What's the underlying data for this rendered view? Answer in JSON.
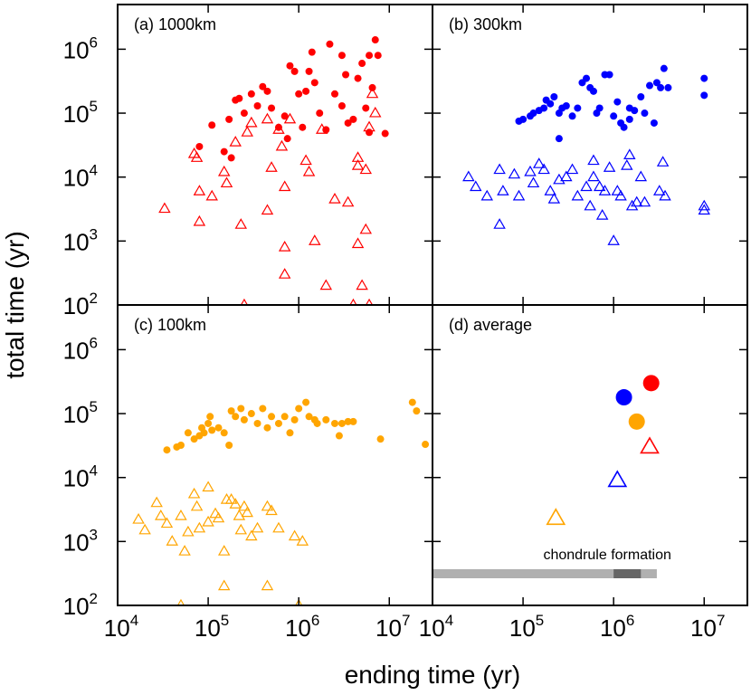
{
  "axis_labels": {
    "x": "ending time (yr)",
    "y": "total time  (yr)"
  },
  "chart_data": [
    {
      "type": "scatter",
      "title": "(a) 1000km",
      "xlim": [
        10000,
        30000000
      ],
      "ylim": [
        100,
        5000000
      ],
      "log_scale": true,
      "xticks": [
        {
          "value": 10000,
          "label": "10",
          "exponent": "4"
        },
        {
          "value": 100000,
          "label": "10",
          "exponent": "5"
        },
        {
          "value": 1000000,
          "label": "10",
          "exponent": "6"
        },
        {
          "value": 10000000,
          "label": "10",
          "exponent": "7"
        }
      ],
      "yticks": [
        {
          "value": 100,
          "label": "10",
          "exponent": "2"
        },
        {
          "value": 1000,
          "label": "10",
          "exponent": "3"
        },
        {
          "value": 10000,
          "label": "10",
          "exponent": "4"
        },
        {
          "value": 100000,
          "label": "10",
          "exponent": "5"
        },
        {
          "value": 1000000,
          "label": "10",
          "exponent": "6"
        }
      ],
      "series": [
        {
          "marker": "circle",
          "color": "#ff0000",
          "x": [
            80000,
            110000,
            150000,
            170000,
            180000,
            200000,
            220000,
            250000,
            300000,
            350000,
            400000,
            450000,
            500000,
            600000,
            700000,
            750000,
            800000,
            900000,
            1000000,
            1100000,
            1300000,
            1400000,
            1500000,
            1700000,
            2000000,
            2200000,
            2500000,
            3000000,
            3300000,
            3500000,
            4000000,
            4500000,
            5000000,
            5500000,
            6000000,
            6500000,
            7000000,
            7500000,
            9000000,
            3000000,
            1200000,
            6000000
          ],
          "values": [
            30000,
            65000,
            25000,
            80000,
            20000,
            160000,
            170000,
            100000,
            200000,
            130000,
            260000,
            220000,
            120000,
            60000,
            90000,
            40000,
            550000,
            450000,
            200000,
            60000,
            450000,
            900000,
            300000,
            100000,
            55000,
            1200000,
            200000,
            800000,
            400000,
            70000,
            80000,
            350000,
            600000,
            120000,
            800000,
            250000,
            1400000,
            800000,
            48000,
            130000,
            220000,
            50000
          ]
        },
        {
          "marker": "triangle",
          "color": "#ff0000",
          "x": [
            33000,
            70000,
            75000,
            80000,
            80000,
            110000,
            150000,
            160000,
            200000,
            230000,
            270000,
            300000,
            450000,
            450000,
            500000,
            600000,
            650000,
            700000,
            700000,
            700000,
            800000,
            1200000,
            1300000,
            1500000,
            1800000,
            2000000,
            2500000,
            3500000,
            4000000,
            4500000,
            4500000,
            4500000,
            5000000,
            5500000,
            5500000,
            6000000,
            6500000,
            7000000,
            6000000,
            250000
          ],
          "values": [
            3200,
            23000,
            20000,
            6000,
            2000,
            5000,
            12000,
            8000,
            35000,
            1800,
            50000,
            70000,
            3000,
            80000,
            14000,
            55000,
            30000,
            7000,
            800,
            300,
            80000,
            18000,
            12000,
            1000,
            55000,
            200,
            4500,
            4000,
            100,
            20000,
            15000,
            900,
            200,
            1500,
            13000,
            60000,
            200000,
            100000,
            100,
            100
          ]
        }
      ]
    },
    {
      "type": "scatter",
      "title": "(b) 300km",
      "xlim": [
        10000,
        30000000
      ],
      "ylim": [
        100,
        5000000
      ],
      "log_scale": true,
      "xticks": [
        {
          "value": 10000,
          "label": "10",
          "exponent": "4"
        },
        {
          "value": 100000,
          "label": "10",
          "exponent": "5"
        },
        {
          "value": 1000000,
          "label": "10",
          "exponent": "6"
        },
        {
          "value": 10000000,
          "label": "10",
          "exponent": "7"
        }
      ],
      "yticks": [
        {
          "value": 100,
          "label": "10",
          "exponent": "2"
        },
        {
          "value": 1000,
          "label": "10",
          "exponent": "3"
        },
        {
          "value": 10000,
          "label": "10",
          "exponent": "4"
        },
        {
          "value": 100000,
          "label": "10",
          "exponent": "5"
        },
        {
          "value": 1000000,
          "label": "10",
          "exponent": "6"
        }
      ],
      "series": [
        {
          "marker": "circle",
          "color": "#0000ff",
          "x": [
            90000,
            100000,
            120000,
            130000,
            150000,
            170000,
            180000,
            200000,
            220000,
            250000,
            270000,
            300000,
            350000,
            400000,
            450000,
            500000,
            550000,
            600000,
            650000,
            700000,
            800000,
            900000,
            1000000,
            1100000,
            1200000,
            1300000,
            1500000,
            1700000,
            2000000,
            2200000,
            2500000,
            2800000,
            3000000,
            3300000,
            3600000,
            4000000,
            10000000,
            10000000,
            250000,
            1500000
          ],
          "values": [
            75000,
            80000,
            90000,
            100000,
            110000,
            120000,
            160000,
            140000,
            180000,
            100000,
            120000,
            130000,
            90000,
            120000,
            300000,
            350000,
            250000,
            220000,
            100000,
            120000,
            400000,
            400000,
            90000,
            150000,
            70000,
            60000,
            80000,
            110000,
            180000,
            100000,
            270000,
            70000,
            300000,
            250000,
            500000,
            250000,
            350000,
            190000,
            40000,
            120000
          ]
        },
        {
          "marker": "triangle",
          "color": "#0000ff",
          "x": [
            25000,
            30000,
            40000,
            55000,
            55000,
            60000,
            80000,
            90000,
            120000,
            130000,
            150000,
            170000,
            200000,
            220000,
            250000,
            300000,
            350000,
            400000,
            500000,
            550000,
            600000,
            700000,
            750000,
            800000,
            900000,
            1000000,
            1100000,
            1200000,
            1400000,
            1500000,
            1600000,
            1800000,
            2000000,
            2200000,
            3200000,
            3500000,
            3700000,
            10000000,
            10000000,
            600000
          ],
          "values": [
            10000,
            7000,
            5000,
            13000,
            1800,
            6000,
            11000,
            5000,
            12000,
            8000,
            16000,
            13000,
            6000,
            4500,
            9000,
            10000,
            13000,
            5000,
            7000,
            3500,
            18000,
            7000,
            2500,
            6000,
            14000,
            1000,
            6000,
            5000,
            15000,
            22000,
            3500,
            4000,
            10000,
            4000,
            6000,
            17000,
            5000,
            3500,
            3000,
            10000
          ]
        }
      ]
    },
    {
      "type": "scatter",
      "title": "(c) 100km",
      "xlim": [
        10000,
        30000000
      ],
      "ylim": [
        100,
        5000000
      ],
      "log_scale": true,
      "xticks": [
        {
          "value": 10000,
          "label": "10",
          "exponent": "4"
        },
        {
          "value": 100000,
          "label": "10",
          "exponent": "5"
        },
        {
          "value": 1000000,
          "label": "10",
          "exponent": "6"
        },
        {
          "value": 10000000,
          "label": "10",
          "exponent": "7"
        }
      ],
      "yticks": [
        {
          "value": 100,
          "label": "10",
          "exponent": "2"
        },
        {
          "value": 1000,
          "label": "10",
          "exponent": "3"
        },
        {
          "value": 10000,
          "label": "10",
          "exponent": "4"
        },
        {
          "value": 100000,
          "label": "10",
          "exponent": "5"
        },
        {
          "value": 1000000,
          "label": "10",
          "exponent": "6"
        }
      ],
      "series": [
        {
          "marker": "circle",
          "color": "#ffa500",
          "x": [
            35000,
            45000,
            50000,
            60000,
            70000,
            80000,
            85000,
            90000,
            100000,
            105000,
            110000,
            130000,
            150000,
            170000,
            180000,
            200000,
            230000,
            250000,
            300000,
            350000,
            400000,
            450000,
            500000,
            600000,
            700000,
            800000,
            900000,
            1000000,
            1200000,
            1300000,
            1500000,
            2000000,
            2500000,
            3000000,
            3500000,
            4000000,
            8000000,
            18000000,
            20000000,
            25000000,
            2800000,
            1600000
          ],
          "values": [
            27000,
            30000,
            32000,
            50000,
            40000,
            45000,
            60000,
            50000,
            70000,
            90000,
            55000,
            60000,
            50000,
            32000,
            110000,
            90000,
            120000,
            80000,
            100000,
            70000,
            120000,
            60000,
            90000,
            70000,
            90000,
            50000,
            80000,
            120000,
            150000,
            90000,
            80000,
            80000,
            70000,
            70000,
            75000,
            75000,
            40000,
            150000,
            110000,
            33000,
            45000,
            70000
          ]
        },
        {
          "marker": "triangle",
          "color": "#ffa500",
          "x": [
            17000,
            20000,
            27000,
            30000,
            35000,
            40000,
            50000,
            55000,
            60000,
            70000,
            75000,
            80000,
            100000,
            100000,
            120000,
            130000,
            150000,
            160000,
            180000,
            200000,
            220000,
            230000,
            250000,
            270000,
            300000,
            350000,
            450000,
            500000,
            600000,
            900000,
            1100000,
            450000,
            150000,
            50000,
            1000000
          ],
          "values": [
            2200,
            1500,
            4000,
            2500,
            1900,
            1000,
            2500,
            700,
            1400,
            5500,
            3500,
            1600,
            2000,
            7000,
            2700,
            2300,
            700,
            4500,
            4500,
            3800,
            2500,
            1500,
            3500,
            2800,
            1200,
            1600,
            3500,
            3000,
            1600,
            1200,
            1000,
            200,
            200,
            100,
            100
          ]
        }
      ]
    },
    {
      "type": "scatter",
      "title": "(d) average",
      "xlim": [
        10000,
        30000000
      ],
      "ylim": [
        100,
        5000000
      ],
      "log_scale": true,
      "xticks": [
        {
          "value": 10000,
          "label": "10",
          "exponent": "4"
        },
        {
          "value": 100000,
          "label": "10",
          "exponent": "5"
        },
        {
          "value": 1000000,
          "label": "10",
          "exponent": "6"
        },
        {
          "value": 10000000,
          "label": "10",
          "exponent": "7"
        }
      ],
      "yticks": [
        {
          "value": 100,
          "label": "10",
          "exponent": "2"
        },
        {
          "value": 1000,
          "label": "10",
          "exponent": "3"
        },
        {
          "value": 10000,
          "label": "10",
          "exponent": "4"
        },
        {
          "value": 100000,
          "label": "10",
          "exponent": "5"
        },
        {
          "value": 1000000,
          "label": "10",
          "exponent": "6"
        }
      ],
      "series": [
        {
          "marker": "circle",
          "size": "large",
          "colors": [
            "#ff0000",
            "#0000ff",
            "#ffa500"
          ],
          "x": [
            2600000,
            1300000,
            1800000
          ],
          "values": [
            300000,
            180000,
            75000
          ]
        },
        {
          "marker": "triangle",
          "size": "large",
          "colors": [
            "#ff0000",
            "#0000ff",
            "#ffa500"
          ],
          "x": [
            2500000,
            1100000,
            230000
          ],
          "values": [
            30000,
            9000,
            2300
          ]
        }
      ],
      "chondrule_formation": {
        "label": "chondrule formation",
        "range": [
          10000,
          3000000
        ],
        "peak_range": [
          1000000,
          2000000
        ]
      }
    }
  ]
}
